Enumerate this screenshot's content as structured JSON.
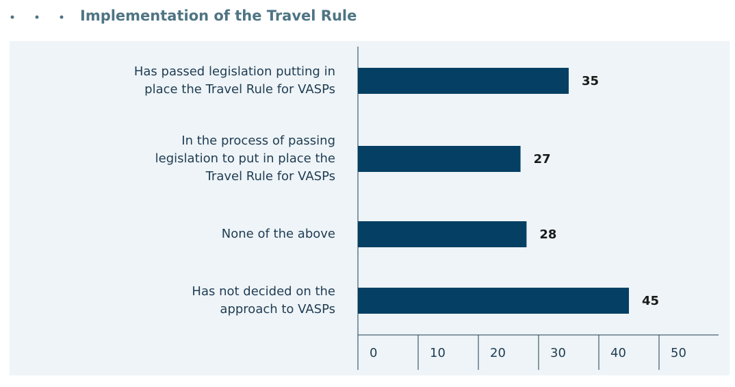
{
  "chart_data": {
    "type": "bar",
    "orientation": "horizontal",
    "title": "Implementation of the Travel Rule",
    "categories": [
      "Has passed legislation putting in place the Travel Rule for VASPs",
      "In the process of passing legislation to put in place the Travel Rule for VASPs",
      "None of the above",
      "Has not decided on the approach to VASPs"
    ],
    "values": [
      35,
      27,
      28,
      45
    ],
    "color": "#053f63",
    "xlim": [
      0,
      60
    ],
    "xticks": [
      0,
      10,
      20,
      30,
      40,
      50
    ],
    "grid": false
  }
}
